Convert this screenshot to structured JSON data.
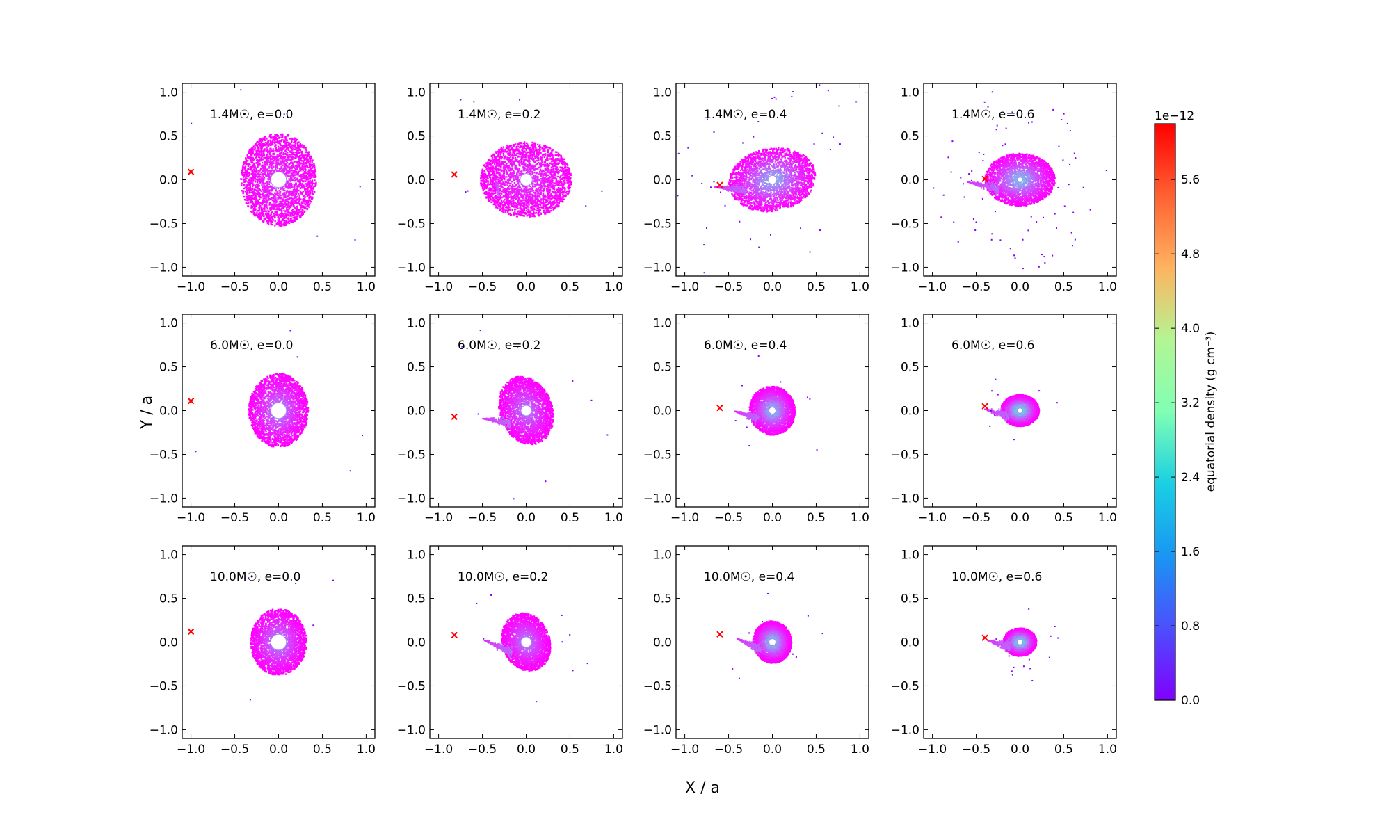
{
  "figure": {
    "xlabel": "X / a",
    "ylabel": "Y / a"
  },
  "colorbar": {
    "label": "equatorial density (g cm⁻³)",
    "offset_text": "1e−12",
    "ticks": [
      0.0,
      0.8,
      1.6,
      2.4,
      3.2,
      4.0,
      4.8,
      5.6
    ],
    "tick_labels": [
      "0.0",
      "0.8",
      "1.6",
      "2.4",
      "3.2",
      "4.0",
      "4.8",
      "5.6"
    ],
    "vmin": 0.0,
    "vmax": 6.2,
    "colormap": "rainbow"
  },
  "chart_data": {
    "type": "scatter",
    "panel_grid": {
      "rows": 3,
      "cols": 4
    },
    "xlim": [
      -1.1,
      1.1
    ],
    "ylim": [
      -1.1,
      1.1
    ],
    "xticks": [
      -1.0,
      -0.5,
      0.0,
      0.5,
      1.0
    ],
    "yticks": [
      -1.0,
      -0.5,
      0.0,
      0.5,
      1.0
    ],
    "xtick_labels": [
      "−1.0",
      "−0.5",
      "0.0",
      "0.5",
      "1.0"
    ],
    "ytick_labels": [
      "−1.0",
      "−0.5",
      "0.0",
      "0.5",
      "1.0"
    ],
    "marker_color": "#ff0000",
    "panels": [
      {
        "label": "1.4M☉, e=0.0",
        "marker": [
          -1.0,
          0.09
        ],
        "disk": {
          "cx": 0.0,
          "cy": 0.0,
          "rx": 0.43,
          "ry": 0.53,
          "rot": 0,
          "peak": 0.45,
          "hole": 0.09,
          "tail": 0,
          "halo": 0.1
        }
      },
      {
        "label": "1.4M☉, e=0.2",
        "marker": [
          -0.82,
          0.06
        ],
        "disk": {
          "cx": 0.0,
          "cy": 0.0,
          "rx": 0.52,
          "ry": 0.43,
          "rot": 0,
          "peak": 0.5,
          "hole": 0.07,
          "tail": 0.05,
          "halo": 0.1
        }
      },
      {
        "label": "1.4M☉, e=0.4",
        "marker": [
          -0.6,
          -0.06
        ],
        "disk": {
          "cx": 0.0,
          "cy": 0.0,
          "rx": 0.5,
          "ry": 0.36,
          "rot": 10,
          "peak": 1.7,
          "hole": 0.05,
          "tail": 0.4,
          "halo": 0.45
        }
      },
      {
        "label": "1.4M☉, e=0.6",
        "marker": [
          -0.4,
          0.01
        ],
        "disk": {
          "cx": 0.0,
          "cy": 0.0,
          "rx": 0.4,
          "ry": 0.3,
          "rot": 0,
          "peak": 1.9,
          "hole": 0.03,
          "tail": 0.4,
          "halo": 0.8
        }
      },
      {
        "label": "6.0M☉, e=0.0",
        "marker": [
          -1.0,
          0.11
        ],
        "disk": {
          "cx": 0.0,
          "cy": 0.0,
          "rx": 0.34,
          "ry": 0.42,
          "rot": 0,
          "peak": 1.2,
          "hole": 0.09,
          "tail": 0,
          "halo": 0.05
        }
      },
      {
        "label": "6.0M☉, e=0.2",
        "marker": [
          -0.82,
          -0.07
        ],
        "disk": {
          "cx": 0.0,
          "cy": 0.0,
          "rx": 0.3,
          "ry": 0.4,
          "rot": 20,
          "peak": 1.1,
          "hole": 0.06,
          "tail": 0.35,
          "halo": 0.1
        }
      },
      {
        "label": "6.0M☉, e=0.4",
        "marker": [
          -0.6,
          0.03
        ],
        "disk": {
          "cx": 0.0,
          "cy": 0.0,
          "rx": 0.26,
          "ry": 0.28,
          "rot": 10,
          "peak": 1.9,
          "hole": 0.04,
          "tail": 0.3,
          "halo": 0.1
        }
      },
      {
        "label": "6.0M☉, e=0.6",
        "marker": [
          -0.4,
          0.05
        ],
        "disk": {
          "cx": 0.0,
          "cy": 0.0,
          "rx": 0.22,
          "ry": 0.18,
          "rot": 0,
          "peak": 2.6,
          "hole": 0.03,
          "tail": 0.3,
          "halo": 0.1
        }
      },
      {
        "label": "10.0M☉, e=0.0",
        "marker": [
          -1.0,
          0.12
        ],
        "disk": {
          "cx": 0.0,
          "cy": 0.0,
          "rx": 0.32,
          "ry": 0.38,
          "rot": 0,
          "peak": 1.3,
          "hole": 0.09,
          "tail": 0,
          "halo": 0.05
        }
      },
      {
        "label": "10.0M☉, e=0.2",
        "marker": [
          -0.82,
          0.08
        ],
        "disk": {
          "cx": 0.0,
          "cy": 0.0,
          "rx": 0.27,
          "ry": 0.34,
          "rot": 20,
          "peak": 1.2,
          "hole": 0.06,
          "tail": 0.35,
          "halo": 0.1
        }
      },
      {
        "label": "10.0M☉, e=0.4",
        "marker": [
          -0.6,
          0.09
        ],
        "disk": {
          "cx": 0.0,
          "cy": 0.0,
          "rx": 0.22,
          "ry": 0.24,
          "rot": 10,
          "peak": 2.2,
          "hole": 0.04,
          "tail": 0.3,
          "halo": 0.1
        }
      },
      {
        "label": "10.0M☉, e=0.6",
        "marker": [
          -0.4,
          0.05
        ],
        "disk": {
          "cx": 0.0,
          "cy": 0.0,
          "rx": 0.19,
          "ry": 0.16,
          "rot": 0,
          "peak": 2.6,
          "hole": 0.03,
          "tail": 0.28,
          "halo": 0.15
        }
      }
    ]
  }
}
